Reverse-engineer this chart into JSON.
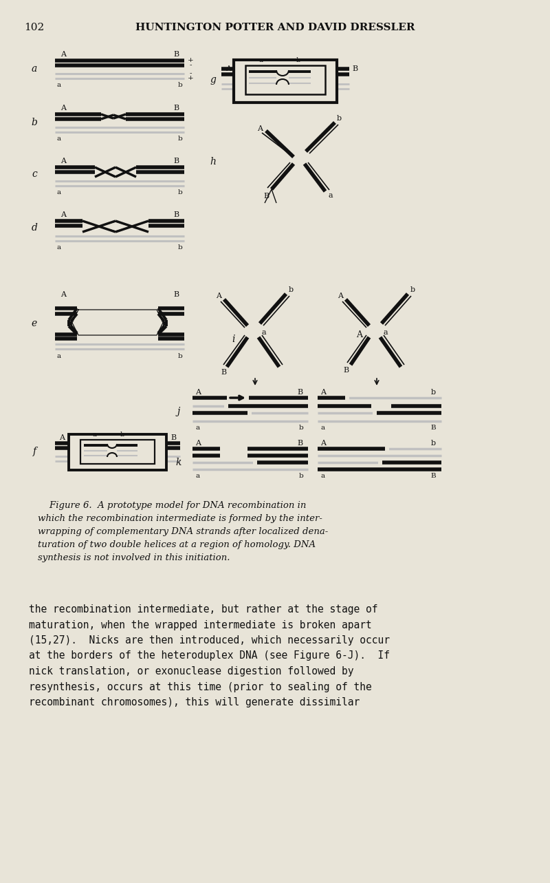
{
  "bg": "#e8e4d8",
  "black": "#111111",
  "lgray": "#c0c0c0",
  "page_number": "102",
  "header": "HUNTINGTON POTTER AND DAVID DRESSLER",
  "figure_caption_lines": [
    "    Figure 6.  A prototype model for DNA recombination in",
    "which the recombination intermediate is formed by the inter-",
    "wrapping of complementary DNA strands after localized dena-",
    "turation of two double helices at a region of homology. DNA",
    "synthesis is not involved in this initiation."
  ],
  "body_text": [
    "the recombination intermediate, but rather at the stage of",
    "maturation, when the wrapped intermediate is broken apart",
    "(15,27).  Nicks are then introduced, which necessarily occur",
    "at the borders of the heteroduplex DNA (see Figure 6-J).  If",
    "nick translation, or exonuclease digestion followed by",
    "resynthesis, occurs at this time (prior to sealing of the",
    "recombinant chromosomes), this will generate dissimilar"
  ]
}
